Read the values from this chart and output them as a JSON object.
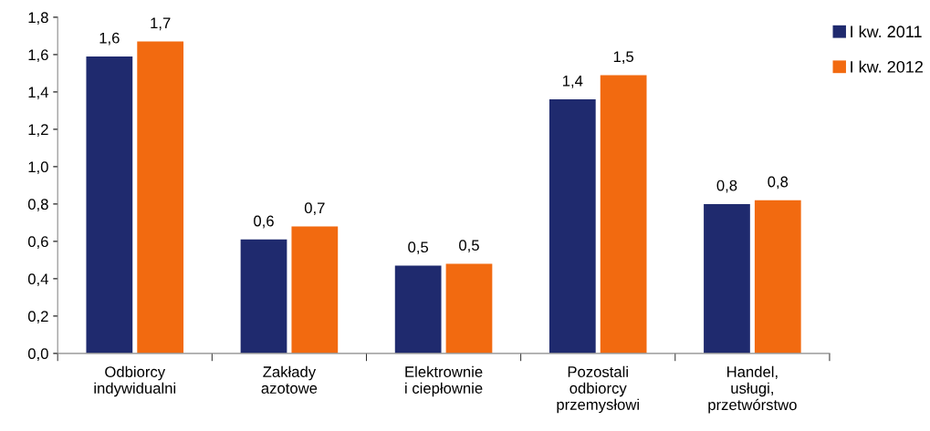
{
  "chart_data": {
    "type": "bar",
    "categories": [
      "Odbiorcy\nindywidualni",
      "Zakłady\nazotowe",
      "Elektrownie\ni ciepłownie",
      "Pozostali\nodbiorcy\nprzemysłowi",
      "Handel,\nusługi,\nprzetwórstwo"
    ],
    "series": [
      {
        "name": "I kw. 2011",
        "color": "#1f2a6e",
        "values": [
          1.59,
          0.61,
          0.47,
          1.36,
          0.8
        ],
        "value_labels": [
          "1,6",
          "0,6",
          "0,5",
          "1,4",
          "0,8"
        ]
      },
      {
        "name": "I kw. 2012",
        "color": "#f26a10",
        "values": [
          1.67,
          0.68,
          0.48,
          1.49,
          0.82
        ],
        "value_labels": [
          "1,7",
          "0,7",
          "0,5",
          "1,5",
          "0,8"
        ]
      }
    ],
    "ylim": [
      0,
      1.8
    ],
    "yticks": [
      {
        "value": 0,
        "label": "0,0"
      },
      {
        "value": 0.2,
        "label": "0,2"
      },
      {
        "value": 0.4,
        "label": "0,4"
      },
      {
        "value": 0.6,
        "label": "0,6"
      },
      {
        "value": 0.8,
        "label": "0,8"
      },
      {
        "value": 1.0,
        "label": "1,0"
      },
      {
        "value": 1.2,
        "label": "1,2"
      },
      {
        "value": 1.4,
        "label": "1,4"
      },
      {
        "value": 1.6,
        "label": "1,6"
      },
      {
        "value": 1.8,
        "label": "1,8"
      }
    ],
    "grid": false,
    "legend": "top right"
  }
}
